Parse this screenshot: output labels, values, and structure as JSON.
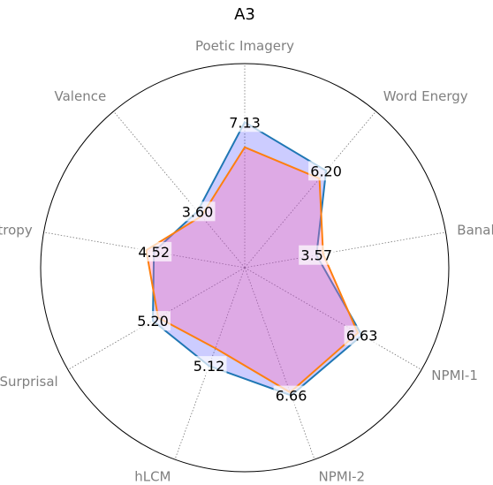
{
  "chart_data": {
    "type": "radar",
    "title": "A3",
    "axes": [
      "Poetic Imagery",
      "Word Energy",
      "Banality",
      "NPMI-1",
      "NPMI-2",
      "hLCM",
      "Surprisal",
      "Entropy",
      "Valence"
    ],
    "range": [
      0,
      10
    ],
    "grid": true,
    "series": [
      {
        "values": [
          7.13,
          6.2,
          3.57,
          6.63,
          6.66,
          5.12,
          5.2,
          4.52,
          3.6
        ],
        "line_color": "#1f77b4",
        "fill_color": "#0000ff",
        "fill_opacity": 0.2
      },
      {
        "values": [
          5.9,
          5.7,
          3.9,
          6.4,
          6.5,
          4.2,
          4.9,
          4.9,
          3.3
        ],
        "line_color": "#ff7f0e",
        "fill_color": "#ff69b4",
        "fill_opacity": 0.35
      }
    ],
    "data_labels": [
      "7.13",
      "6.20",
      "3.57",
      "6.63",
      "6.66",
      "5.12",
      "5.20",
      "4.52",
      "3.60"
    ]
  }
}
